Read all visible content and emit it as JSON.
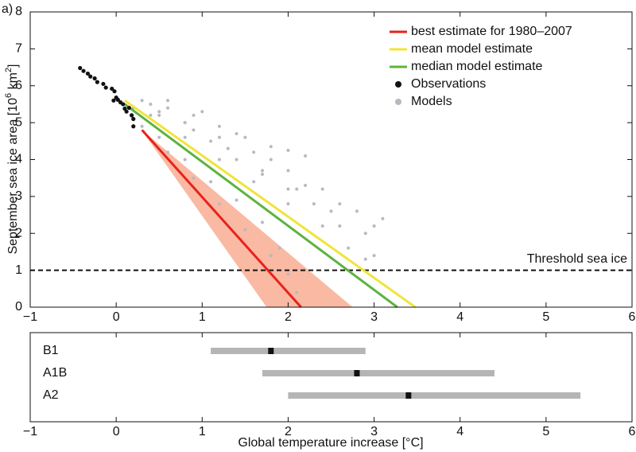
{
  "chart_data": [
    {
      "type": "line",
      "panel_label": "a)",
      "ylabel": [
        "September sea ice area [10",
        "6",
        " km",
        "2",
        "]"
      ],
      "xlim": [
        -1,
        6
      ],
      "ylim": [
        0,
        8
      ],
      "xticks": [
        {
          "value": -1,
          "label": "−1"
        },
        0,
        1,
        2,
        3,
        4,
        5,
        6
      ],
      "yticks": [
        0,
        1,
        2,
        3,
        4,
        5,
        6,
        7,
        8
      ],
      "threshold": {
        "value": 1,
        "label": "Threshold sea ice"
      },
      "band": {
        "color": "#f9b9a2",
        "x": [
          0.28,
          1.75,
          2.75,
          0.3
        ],
        "y": [
          4.85,
          0,
          0,
          4.8
        ]
      },
      "series": [
        {
          "name": "best estimate for 1980–2007",
          "color": "#e8221c",
          "x": [
            0.3,
            2.15
          ],
          "y": [
            4.8,
            0
          ]
        },
        {
          "name": "mean model estimate",
          "color": "#f0e43a",
          "x": [
            0.1,
            3.48
          ],
          "y": [
            5.6,
            0
          ]
        },
        {
          "name": "median model estimate",
          "color": "#5db33f",
          "x": [
            0.1,
            3.27
          ],
          "y": [
            5.5,
            0
          ]
        }
      ],
      "points": [
        {
          "name": "Observations",
          "color": "#111111",
          "x": [
            -0.42,
            -0.38,
            -0.33,
            -0.3,
            -0.25,
            -0.22,
            -0.15,
            -0.12,
            -0.05,
            -0.02,
            0.0,
            0.02,
            -0.03,
            0.05,
            0.08,
            0.1,
            0.12,
            0.15,
            0.18,
            0.2,
            0.2
          ],
          "y": [
            6.48,
            6.4,
            6.33,
            6.25,
            6.2,
            6.1,
            6.05,
            5.95,
            5.92,
            5.85,
            5.68,
            5.62,
            5.6,
            5.55,
            5.5,
            5.38,
            5.3,
            5.4,
            5.2,
            5.1,
            4.9
          ]
        },
        {
          "name": "Models",
          "color": "#b8b8c2",
          "x": [
            0.3,
            0.6,
            0.9,
            1.2,
            1.5,
            1.8,
            2.0,
            2.2,
            0.4,
            0.8,
            1.2,
            1.6,
            2.0,
            2.4,
            2.8,
            3.1,
            0.5,
            0.9,
            1.3,
            1.7,
            2.1,
            2.5,
            2.9,
            3.0,
            0.4,
            0.8,
            1.2,
            1.6,
            2.0,
            2.4,
            2.7,
            2.9,
            0.3,
            0.6,
            0.9,
            1.2,
            1.5,
            1.8,
            2.0,
            2.1,
            0.5,
            0.8,
            1.1,
            1.4,
            1.7,
            1.9,
            0.2,
            0.5,
            0.8,
            1.1,
            1.4,
            1.7,
            2.0,
            2.3,
            2.6,
            0.6,
            1.0,
            1.4,
            1.8,
            2.2,
            2.6,
            3.0
          ],
          "y": [
            5.6,
            5.4,
            5.2,
            4.9,
            4.6,
            4.35,
            4.25,
            4.1,
            5.5,
            5.0,
            4.6,
            4.2,
            3.7,
            3.2,
            2.6,
            2.4,
            5.3,
            4.8,
            4.3,
            3.7,
            3.2,
            2.6,
            2.0,
            1.4,
            5.2,
            4.6,
            4.0,
            3.4,
            2.8,
            2.2,
            1.6,
            1.3,
            4.9,
            4.2,
            3.5,
            2.8,
            2.1,
            1.4,
            0.9,
            0.4,
            4.6,
            4.0,
            3.4,
            2.9,
            2.3,
            1.6,
            5.4,
            5.2,
            5.0,
            4.5,
            4.0,
            3.6,
            3.2,
            2.8,
            2.2,
            5.6,
            5.3,
            4.7,
            4.0,
            3.3,
            2.8,
            2.2
          ]
        }
      ]
    },
    {
      "type": "range",
      "xlabel": "Global temperature increase [°C]",
      "xlim": [
        -1,
        6
      ],
      "xticks": [
        {
          "value": -1,
          "label": "−1"
        },
        0,
        1,
        2,
        3,
        4,
        5,
        6
      ],
      "categories": [
        "B1",
        "A1B",
        "A2"
      ],
      "low": [
        1.1,
        1.7,
        2.0
      ],
      "high": [
        2.9,
        4.4,
        5.4
      ],
      "median": [
        1.8,
        2.8,
        3.4
      ],
      "color": "#b5b5b5",
      "median_color": "#111111"
    }
  ]
}
